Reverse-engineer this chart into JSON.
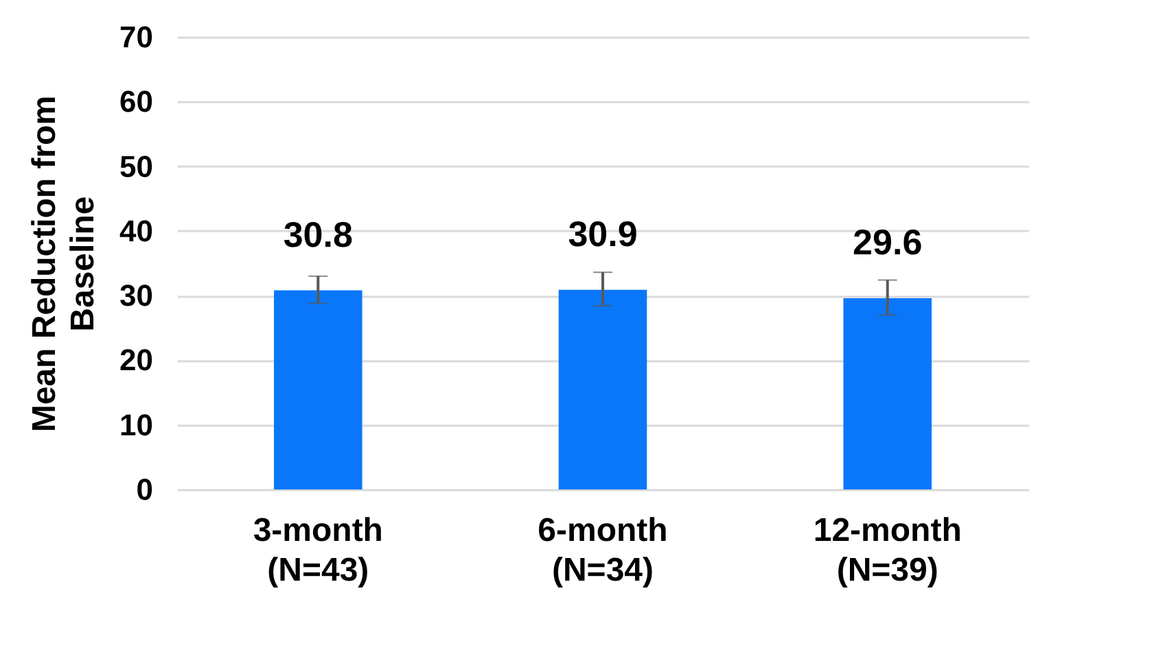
{
  "chart_data": {
    "type": "bar",
    "ylabel": "Mean Reduction from Baseline",
    "categories": [
      "3-month\n(N=43)",
      "6-month\n(N=34)",
      "12-month\n(N=39)"
    ],
    "values": [
      30.8,
      30.9,
      29.6
    ],
    "errors": [
      [
        28.8,
        33.0
      ],
      [
        28.4,
        33.6
      ],
      [
        27.0,
        32.4
      ]
    ],
    "color": "#0a77fb",
    "ylim": [
      0,
      70
    ],
    "yticks": [
      0,
      10,
      20,
      30,
      40,
      50,
      60,
      70
    ],
    "grid": "y",
    "data_labels": true
  }
}
